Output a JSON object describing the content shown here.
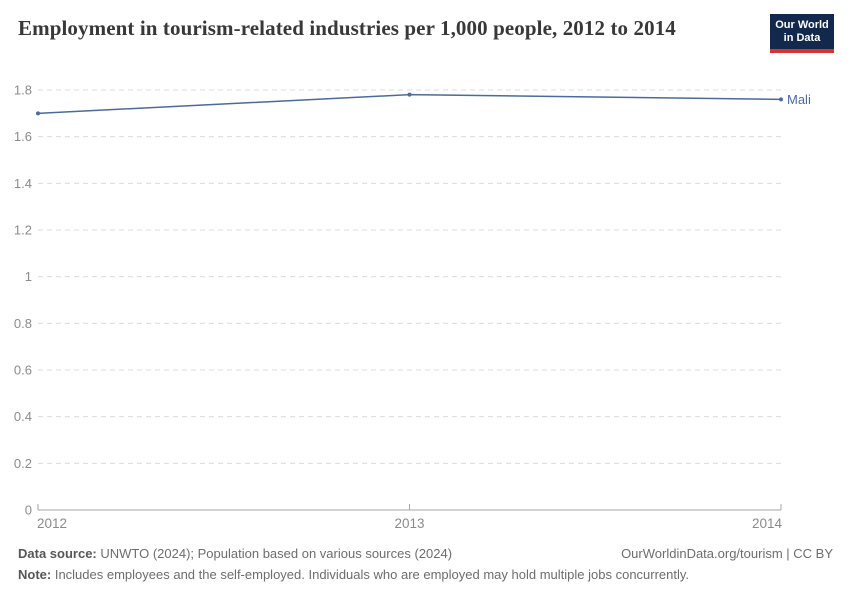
{
  "header": {
    "title": "Employment in tourism-related industries per 1,000 people, 2012 to 2014",
    "logo": {
      "line1": "Our World",
      "line2": "in Data"
    }
  },
  "chart_data": {
    "type": "line",
    "title": "Employment in tourism-related industries per 1,000 people, 2012 to 2014",
    "x": [
      2012,
      2013,
      2014
    ],
    "series": [
      {
        "name": "Mali",
        "color": "#4C6A9C",
        "values": [
          1.7,
          1.78,
          1.76
        ]
      }
    ],
    "x_ticks": [
      2012,
      2013,
      2014
    ],
    "y_ticks": [
      0,
      0.2,
      0.4,
      0.6,
      0.8,
      1,
      1.2,
      1.4,
      1.6,
      1.8
    ],
    "xlim": [
      2012,
      2014
    ],
    "ylim": [
      0,
      1.8
    ],
    "xlabel": "",
    "ylabel": "",
    "grid": "horizontal-dashed",
    "legend_position": "end-of-line-label",
    "end_label": "Mali"
  },
  "colors": {
    "accent": "#4C6A9C",
    "grid": "#dcdcdc",
    "axis": "#a5a5a5",
    "tick_label": "#8b8b8b",
    "title": "#383838",
    "footer": "#6d6d6d",
    "logo_bg": "#12294d",
    "logo_red": "#d7352c"
  },
  "footer": {
    "data_source_label": "Data source:",
    "data_source_text": " UNWTO (2024); Population based on various sources (2024)",
    "credit": "OurWorldinData.org/tourism | CC BY",
    "note_label": "Note:",
    "note_text": " Includes employees and the self-employed. Individuals who are employed may hold multiple jobs concurrently."
  }
}
